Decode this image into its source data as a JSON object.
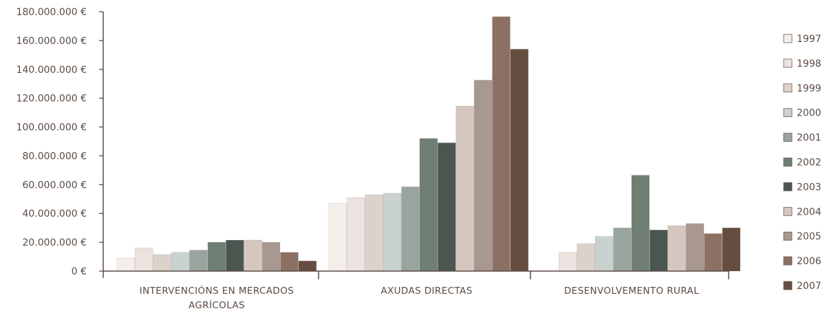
{
  "chart_data": {
    "type": "bar",
    "title": "",
    "xlabel": "",
    "ylabel": "",
    "ylim": [
      0,
      180000000
    ],
    "yticks": [
      0,
      20000000,
      40000000,
      60000000,
      80000000,
      100000000,
      120000000,
      140000000,
      160000000,
      180000000
    ],
    "ytick_labels": [
      "0 €",
      "20.000.000 €",
      "40.000.000 €",
      "60.000.000 €",
      "80.000.000 €",
      "100.000.000 €",
      "120.000.000 €",
      "140.000.000 €",
      "160.000.000 €",
      "180.000.000 €"
    ],
    "categories": [
      {
        "lines": [
          "INTERVENCIÓNS EN MERCADOS",
          "AGRÍCOLAS"
        ]
      },
      {
        "lines": [
          "AXUDAS DIRECTAS"
        ]
      },
      {
        "lines": [
          "DESENVOLVEMENTO RURAL"
        ]
      }
    ],
    "grid": false,
    "legend_position": "right",
    "series": [
      {
        "name": "1997",
        "color": "#f3eeea",
        "values": [
          9000000,
          47000000,
          null
        ]
      },
      {
        "name": "1998",
        "color": "#ece3e0",
        "values": [
          16000000,
          51000000,
          13000000
        ]
      },
      {
        "name": "1999",
        "color": "#ddd2cb",
        "values": [
          11500000,
          53000000,
          19000000
        ]
      },
      {
        "name": "2000",
        "color": "#c9d2ce",
        "values": [
          13000000,
          54000000,
          24000000
        ]
      },
      {
        "name": "2001",
        "color": "#9aa49f",
        "values": [
          14500000,
          58500000,
          30000000
        ]
      },
      {
        "name": "2002",
        "color": "#6f7f73",
        "values": [
          20000000,
          92000000,
          66500000
        ]
      },
      {
        "name": "2003",
        "color": "#4a564f",
        "values": [
          21500000,
          89000000,
          28500000
        ]
      },
      {
        "name": "2004",
        "color": "#d5c7bf",
        "values": [
          21500000,
          114500000,
          31500000
        ]
      },
      {
        "name": "2005",
        "color": "#a99890",
        "values": [
          20000000,
          132500000,
          33000000
        ]
      },
      {
        "name": "2006",
        "color": "#8b7063",
        "values": [
          13000000,
          176500000,
          26000000
        ]
      },
      {
        "name": "2007",
        "color": "#654e40",
        "values": [
          7000000,
          154000000,
          30000000
        ]
      }
    ]
  }
}
